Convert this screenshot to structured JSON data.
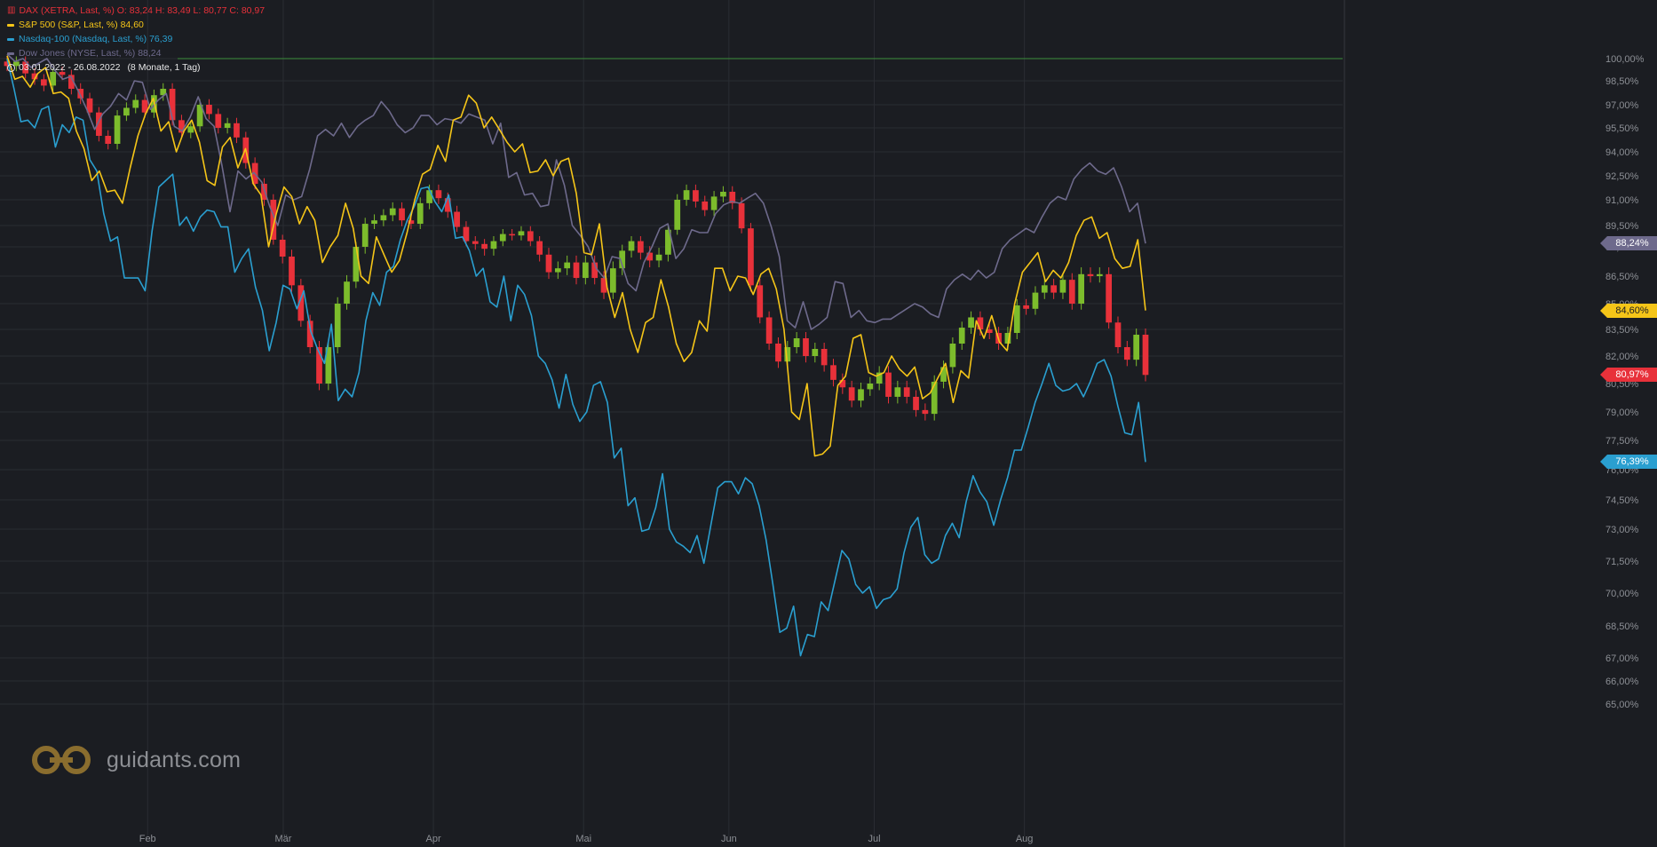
{
  "legend": {
    "range_label": "03.01.2022 - 26.08.2022",
    "range_extra": "(8 Monate, 1 Tag)"
  },
  "logo": {
    "text": "guidants.com"
  },
  "colors": {
    "background": "#1b1d22",
    "grid": "#2a2d33",
    "dax_up": "#7cbc2c",
    "dax_down": "#e8313a",
    "sp500": "#f5c518",
    "nasdaq": "#2a9fd0",
    "dow": "#6e6a8c",
    "reference_line": "#3c8f3c"
  },
  "chart_data": {
    "type": "line",
    "title": "",
    "y_unit": "%",
    "ylim": [
      65.0,
      100.75
    ],
    "yticks": [
      "100,00%",
      "98,50%",
      "97,00%",
      "95,50%",
      "94,00%",
      "92,50%",
      "91,00%",
      "89,50%",
      "88,00%",
      "86,50%",
      "85,00%",
      "83,50%",
      "82,00%",
      "80,50%",
      "79,00%",
      "77,50%",
      "76,00%",
      "74,50%",
      "73,00%",
      "71,50%",
      "70,00%",
      "68,50%",
      "67,00%",
      "66,00%",
      "65,00%"
    ],
    "x_date_range": [
      "2022-01-03",
      "2022-08-26"
    ],
    "x_month_labels": [
      {
        "label": "Feb",
        "date": "2022-02-01"
      },
      {
        "label": "Mär",
        "date": "2022-03-01"
      },
      {
        "label": "Apr",
        "date": "2022-04-01"
      },
      {
        "label": "Mai",
        "date": "2022-05-02"
      },
      {
        "label": "Jun",
        "date": "2022-06-01"
      },
      {
        "label": "Jul",
        "date": "2022-07-01"
      },
      {
        "label": "Aug",
        "date": "2022-08-01"
      }
    ],
    "reference_line": 100.0,
    "grid": true,
    "series": [
      {
        "name": "DAX (XETRA, Last, %)",
        "type": "candlestick",
        "legend_label": "DAX (XETRA, Last, %)  O: 83,24  H: 83,49  L: 80,77  C: 80,97",
        "last_label": "80,97%",
        "values": [
          99.5,
          99.8,
          99.0,
          98.6,
          98.2,
          99.1,
          98.9,
          98.0,
          97.4,
          96.5,
          95.0,
          94.5,
          96.3,
          96.8,
          97.3,
          96.5,
          97.6,
          98.0,
          96.0,
          95.2,
          95.6,
          97.0,
          96.4,
          95.5,
          95.8,
          94.9,
          93.3,
          92.0,
          91.0,
          88.5,
          87.5,
          86.0,
          84.0,
          82.5,
          80.5,
          82.5,
          85.0,
          86.2,
          88.0,
          89.6,
          89.8,
          90.1,
          90.5,
          89.8,
          89.6,
          90.8,
          91.6,
          91.1,
          90.3,
          89.4,
          88.4,
          88.2,
          87.9,
          88.4,
          88.9,
          88.8,
          89.1,
          88.4,
          87.6,
          86.7,
          86.9,
          87.2,
          86.4,
          87.2,
          86.4,
          85.6,
          86.9,
          87.8,
          88.4,
          87.7,
          87.3,
          87.6,
          89.2,
          91.0,
          91.6,
          90.9,
          90.4,
          91.2,
          91.5,
          90.8,
          89.3,
          86.0,
          84.2,
          82.7,
          81.7,
          82.5,
          83.0,
          82.0,
          82.4,
          81.5,
          80.7,
          80.3,
          79.6,
          80.2,
          80.5,
          81.1,
          79.8,
          80.3,
          79.8,
          79.1,
          78.9,
          80.6,
          81.4,
          82.7,
          83.6,
          84.2,
          83.5,
          83.3,
          82.7,
          83.3,
          84.9,
          84.7,
          85.6,
          86.0,
          85.6,
          86.3,
          85.0,
          86.6,
          86.5,
          86.6,
          83.9,
          82.5,
          81.8,
          83.2,
          80.97
        ]
      },
      {
        "name": "S&P 500 (S&P, Last, %)",
        "type": "line",
        "legend_label": "S&P 500 (S&P, Last, %)  84,60",
        "last_label": "84,60%",
        "values": [
          100.2,
          98.6,
          98.8,
          98.1,
          99.0,
          99.4,
          97.7,
          97.8,
          97.4,
          95.3,
          94.2,
          92.2,
          92.8,
          91.5,
          91.6,
          90.8,
          93.0,
          95.0,
          96.4,
          97.4,
          95.3,
          95.9,
          94.0,
          95.3,
          96.0,
          94.6,
          92.2,
          91.9,
          94.3,
          94.9,
          93.0,
          94.2,
          92.0,
          91.3,
          88.0,
          90.2,
          91.8,
          91.2,
          89.6,
          90.6,
          89.8,
          87.2,
          88.0,
          88.8,
          90.8,
          89.3,
          86.5,
          86.1,
          88.7,
          87.6,
          86.7,
          87.3,
          89.0,
          91.0,
          92.6,
          92.9,
          94.4,
          93.4,
          96.0,
          96.2,
          97.6,
          97.1,
          95.5,
          96.2,
          95.4,
          94.6,
          94.0,
          94.5,
          92.7,
          92.8,
          93.5,
          92.5,
          93.4,
          93.6,
          91.4,
          87.7,
          87.6,
          89.6,
          85.9,
          84.2,
          85.6,
          83.5,
          82.2,
          83.9,
          84.2,
          86.3,
          84.8,
          82.7,
          81.7,
          82.2,
          84.0,
          83.4,
          86.9,
          86.9,
          85.7,
          86.5,
          86.4,
          85.5,
          86.6,
          86.9,
          85.8,
          83.5,
          79.0,
          78.6,
          80.5,
          76.7,
          76.8,
          77.2,
          80.4,
          80.9,
          83.0,
          83.2,
          81.1,
          80.9,
          81.1,
          82.0,
          81.3,
          80.9,
          81.4,
          79.7,
          80.0,
          80.8,
          81.6,
          79.5,
          81.2,
          80.8,
          84.0,
          83.0,
          84.3,
          82.8,
          82.3,
          85.0,
          86.7,
          87.2,
          87.7,
          86.2,
          86.8,
          86.4,
          87.2,
          88.8,
          89.8,
          90.0,
          88.6,
          89.0,
          87.4,
          86.9,
          87.0,
          88.5,
          84.6
        ]
      },
      {
        "name": "Nasdaq-100 (Nasdaq, Last, %)",
        "type": "line",
        "legend_label": "Nasdaq-100 (Nasdaq, Last, %)  76,39",
        "last_label": "76,39%",
        "values": [
          100.0,
          98.0,
          95.9,
          96.0,
          95.5,
          96.7,
          96.9,
          94.3,
          95.7,
          95.2,
          96.2,
          96.0,
          93.5,
          92.8,
          90.2,
          88.4,
          88.7,
          86.4,
          86.4,
          86.4,
          85.7,
          89.1,
          91.8,
          92.2,
          92.6,
          89.5,
          90.0,
          89.1,
          90.0,
          90.4,
          90.3,
          89.4,
          89.4,
          86.7,
          87.4,
          87.9,
          85.9,
          84.6,
          82.3,
          83.9,
          86.0,
          85.8,
          84.7,
          85.7,
          83.4,
          82.4,
          81.6,
          83.8,
          79.6,
          80.2,
          79.8,
          81.1,
          84.0,
          85.6,
          84.9,
          86.7,
          87.0,
          88.5,
          89.8,
          90.6,
          91.7,
          91.8,
          90.9,
          90.3,
          91.3,
          88.6,
          88.7,
          87.8,
          86.5,
          86.9,
          85.1,
          84.8,
          86.5,
          84.0,
          86.0,
          85.5,
          84.3,
          82.0,
          81.6,
          80.7,
          79.2,
          81.0,
          79.4,
          78.5,
          79.0,
          80.4,
          80.6,
          79.5,
          76.6,
          77.1,
          74.2,
          74.6,
          72.9,
          73.0,
          74.1,
          75.8,
          73.0,
          72.4,
          72.2,
          71.9,
          72.7,
          71.4,
          73.2,
          75.1,
          75.4,
          75.4,
          74.8,
          75.6,
          75.3,
          74.2,
          72.5,
          70.4,
          68.2,
          68.4,
          69.4,
          67.1,
          68.1,
          68.0,
          69.6,
          69.2,
          70.6,
          72.0,
          71.6,
          70.4,
          70.0,
          70.3,
          69.3,
          69.7,
          69.8,
          70.2,
          71.9,
          73.1,
          73.6,
          71.8,
          71.4,
          71.6,
          72.7,
          73.3,
          72.6,
          74.4,
          75.7,
          74.9,
          74.4,
          73.2,
          74.5,
          75.6,
          77.0,
          77.0,
          78.2,
          79.5,
          80.5,
          81.6,
          80.4,
          80.1,
          80.2,
          80.5,
          79.8,
          80.6,
          81.6,
          81.8,
          80.9,
          79.3,
          77.9,
          77.8,
          79.5,
          76.39
        ]
      },
      {
        "name": "Dow Jones (NYSE, Last, %)",
        "type": "line",
        "legend_label": "Dow Jones (NYSE, Last, %)  88,24",
        "last_label": "88,24%",
        "values": [
          100.3,
          99.8,
          100.0,
          99.4,
          99.7,
          100.0,
          99.2,
          98.6,
          98.8,
          97.8,
          96.7,
          95.4,
          96.4,
          96.9,
          97.7,
          97.3,
          98.5,
          98.4,
          96.7,
          97.3,
          97.7,
          95.6,
          95.3,
          96.2,
          97.5,
          96.1,
          95.6,
          93.1,
          90.3,
          92.8,
          92.3,
          92.7,
          92.1,
          90.6,
          89.5,
          91.3,
          91.0,
          91.2,
          92.9,
          95.0,
          95.4,
          95.0,
          95.8,
          94.9,
          95.6,
          96.0,
          96.3,
          97.2,
          96.6,
          95.7,
          95.2,
          95.5,
          96.3,
          96.3,
          95.7,
          96.1,
          96.0,
          95.8,
          96.4,
          96.2,
          96.0,
          94.5,
          95.8,
          92.4,
          92.7,
          91.3,
          91.4,
          90.6,
          90.7,
          93.5,
          91.9,
          89.5,
          88.8,
          88.0,
          86.9,
          86.4,
          87.5,
          87.4,
          86.1,
          85.7,
          87.2,
          88.0,
          89.3,
          89.6,
          87.4,
          87.9,
          89.2,
          89.0,
          89.0,
          90.2,
          90.7,
          90.9,
          90.8,
          91.1,
          91.4,
          90.8,
          89.4,
          87.5,
          84.0,
          83.6,
          85.1,
          83.5,
          83.8,
          84.2,
          86.2,
          86.1,
          84.2,
          84.6,
          84.0,
          83.9,
          84.1,
          84.1,
          84.4,
          84.7,
          85.0,
          84.8,
          84.4,
          84.2,
          85.8,
          86.3,
          86.6,
          86.3,
          86.8,
          86.4,
          86.7,
          87.9,
          88.5,
          88.9,
          89.3,
          89.0,
          90.0,
          90.8,
          91.2,
          91.0,
          92.3,
          92.9,
          93.3,
          92.8,
          92.6,
          93.0,
          91.8,
          90.3,
          90.8,
          88.24
        ]
      }
    ]
  }
}
